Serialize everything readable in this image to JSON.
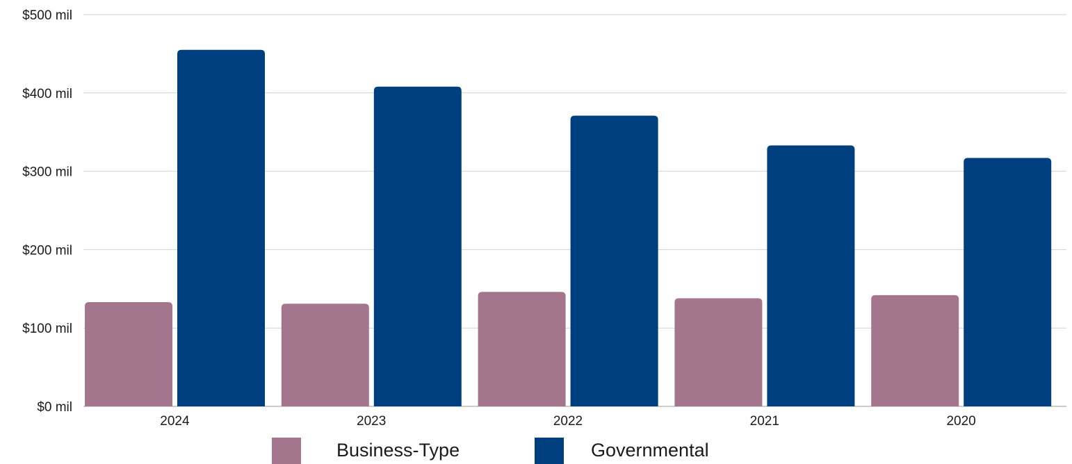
{
  "chart_data": {
    "type": "bar",
    "categories": [
      "2024",
      "2023",
      "2022",
      "2021",
      "2020"
    ],
    "series": [
      {
        "name": "Business-Type",
        "values": [
          133,
          131,
          146,
          138,
          142
        ],
        "color": "#a3768e"
      },
      {
        "name": "Governmental",
        "values": [
          455,
          408,
          371,
          333,
          317
        ],
        "color": "#003f7f"
      }
    ],
    "title": "",
    "xlabel": "",
    "ylabel": "",
    "ylim": [
      0,
      500
    ],
    "y_ticks": [
      {
        "value": 0,
        "label": "$0 mil"
      },
      {
        "value": 100,
        "label": "$100 mil"
      },
      {
        "value": 200,
        "label": "$200 mil"
      },
      {
        "value": 300,
        "label": "$300 mil"
      },
      {
        "value": 400,
        "label": "$400 mil"
      },
      {
        "value": 500,
        "label": "$500 mil"
      }
    ],
    "grid": true,
    "legend": "bottom"
  }
}
